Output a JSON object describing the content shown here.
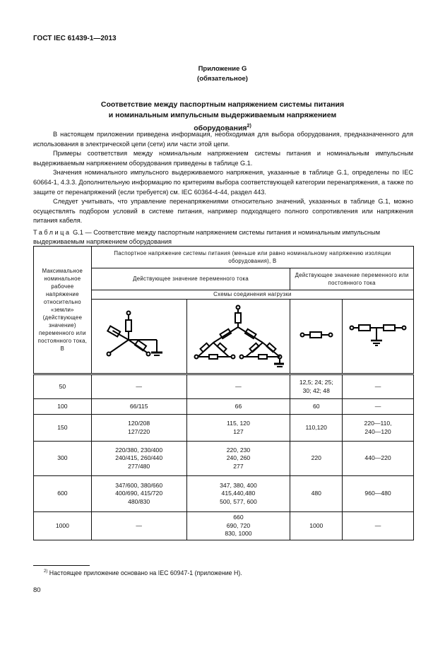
{
  "header": {
    "standard": "ГОСТ IEC 61439-1—2013"
  },
  "annex": {
    "name": "Приложение G",
    "type": "(обязательное)"
  },
  "title": {
    "line1": "Соответствие между паспортным напряжением системы питания",
    "line2": "и номинальным импульсным выдерживаемым напряжением",
    "line3": "оборудования",
    "footnote_ref": "2)"
  },
  "paragraphs": [
    "В настоящем приложении приведена информация, необходимая для выбора оборудования, предназначенного для использования в электрической цепи (сети) или части этой цепи.",
    "Примеры соответствия  между номинальным напряжением системы питания и номинальным импульсным выдерживаемым напряжением оборудования приведены в таблице G.1.",
    "Значения номинального импульсного выдерживаемого напряжения, указанные в таблице G.1, определены по IEC 60664-1, 4.3.3. Дополнительную информацию по критериям выбора соответствующей категории перенапряжения, а также по защите от перенапряжений (если требуется) см. IEC 60364-4-44, раздел 443.",
    "Следует учитывать, что управление перенапряжениями относительно значений, указанных в таблице G.1, можно осуществлять подбором условий в системе питания, например подходящего полного сопротивления или напряжения питания кабеля."
  ],
  "table": {
    "caption_label": "Таблица",
    "caption_text": "G.1 — Соответствие между паспортным напряжением системы питания и номинальным импульсным выдерживаемым   напряжением оборудования",
    "col1_header": "Максимальное номинальное рабочее напряжение относительно «земли» (действующее значение) переменного или постоянного тока, В",
    "group_header": "Паспортное напряжение системы питания (меньше или равно номинальному напряжению изоляции оборудования), В",
    "ac_header": "Действующее значение переменного тока",
    "acdc_header": "Действующее значение переменного или постоянного тока",
    "schemes_header": "Схемы соединения нагрузки",
    "diagram_icons": [
      "star-grounded-icon",
      "delta-grounded-icon",
      "single-phase-icon",
      "midpoint-grounded-icon"
    ],
    "rows": [
      {
        "v": "50",
        "c1": "—",
        "c2": "—",
        "c3": "12,5;  24; 25;\n30; 42; 48",
        "c4": "—"
      },
      {
        "v": "100",
        "c1": "66/115",
        "c2": "66",
        "c3": "60",
        "c4": "—"
      },
      {
        "v": "150",
        "c1": "120/208\n127/220",
        "c2": "115, 120\n127",
        "c3": "110,120",
        "c4": "220—110,\n240—120"
      },
      {
        "v": "300",
        "c1": "220/380, 230/400\n240/415, 260/440\n277/480",
        "c2": "220, 230\n240, 260\n277",
        "c3": "220",
        "c4": "440—220"
      },
      {
        "v": "600",
        "c1": "347/600, 380/660\n400/690, 415/720\n480/830",
        "c2": "347, 380, 400\n415,440,480\n500, 577, 600",
        "c3": "480",
        "c4": "960—480"
      },
      {
        "v": "1000",
        "c1": "—",
        "c2": "660\n690, 720\n830, 1000",
        "c3": "1000",
        "c4": "—"
      }
    ]
  },
  "footnote": {
    "mark": "2)",
    "text": "Настоящее приложение основано на IEC 60947-1 (приложение H)."
  },
  "page_number": "80"
}
